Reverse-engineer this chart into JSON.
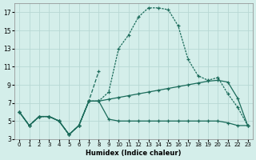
{
  "xlabel": "Humidex (Indice chaleur)",
  "background_color": "#d4eeea",
  "grid_color": "#b8d8d4",
  "line_color": "#1a6b5a",
  "xlim": [
    -0.5,
    23.5
  ],
  "ylim": [
    3,
    18
  ],
  "yticks": [
    3,
    5,
    7,
    9,
    11,
    13,
    15,
    17
  ],
  "xticks": [
    0,
    1,
    2,
    3,
    4,
    5,
    6,
    7,
    8,
    9,
    10,
    11,
    12,
    13,
    14,
    15,
    16,
    17,
    18,
    19,
    20,
    21,
    22,
    23
  ],
  "curve_main_x": [
    0,
    1,
    2,
    3,
    4,
    5,
    6,
    7,
    8,
    9,
    10,
    11,
    12,
    13,
    14,
    15,
    16,
    17,
    18,
    19,
    20,
    21,
    22,
    23
  ],
  "curve_main_y": [
    6.0,
    4.5,
    5.5,
    5.5,
    5.0,
    3.5,
    4.5,
    7.2,
    7.2,
    8.2,
    13.0,
    14.5,
    16.5,
    17.5,
    17.5,
    17.3,
    15.5,
    11.8,
    10.0,
    9.5,
    9.8,
    8.0,
    6.5,
    4.5
  ],
  "curve_short_x": [
    0,
    1,
    2,
    3,
    4,
    5,
    6,
    7,
    8
  ],
  "curve_short_y": [
    6.0,
    4.5,
    5.5,
    5.5,
    5.0,
    3.5,
    4.5,
    7.2,
    10.5
  ],
  "curve_upper_x": [
    0,
    1,
    2,
    3,
    4,
    5,
    6,
    7,
    8,
    9,
    10,
    11,
    12,
    13,
    14,
    15,
    16,
    17,
    18,
    19,
    20,
    21,
    22,
    23
  ],
  "curve_upper_y": [
    6.0,
    4.5,
    5.5,
    5.5,
    5.0,
    3.5,
    4.5,
    7.2,
    7.2,
    7.4,
    7.6,
    7.8,
    8.0,
    8.2,
    8.4,
    8.6,
    8.8,
    9.0,
    9.2,
    9.4,
    9.5,
    9.3,
    7.5,
    4.5
  ],
  "curve_lower_x": [
    0,
    1,
    2,
    3,
    4,
    5,
    6,
    7,
    8,
    9,
    10,
    11,
    12,
    13,
    14,
    15,
    16,
    17,
    18,
    19,
    20,
    21,
    22,
    23
  ],
  "curve_lower_y": [
    6.0,
    4.5,
    5.5,
    5.5,
    5.0,
    3.5,
    4.5,
    7.2,
    7.2,
    5.2,
    5.0,
    5.0,
    5.0,
    5.0,
    5.0,
    5.0,
    5.0,
    5.0,
    5.0,
    5.0,
    5.0,
    4.8,
    4.5,
    4.5
  ]
}
